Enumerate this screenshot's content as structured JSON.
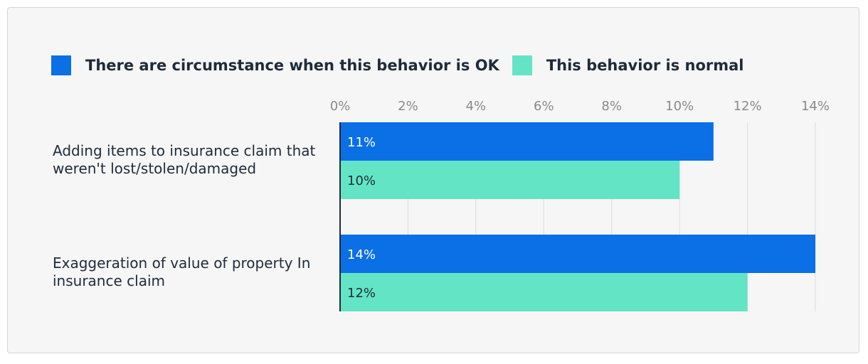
{
  "chart_data": {
    "type": "bar",
    "orientation": "horizontal",
    "categories": [
      "Adding items to insurance claim that weren't lost/stolen/damaged",
      "Exaggeration of value of property In insurance claim"
    ],
    "series": [
      {
        "name": "There are circumstance when this behavior is OK",
        "values": [
          11,
          14
        ],
        "color": "#0b6fe6",
        "label_color": "#ffffff"
      },
      {
        "name": "This behavior is normal",
        "values": [
          10,
          12
        ],
        "color": "#63e5c5",
        "label_color": "#1f2b3a"
      }
    ],
    "value_labels": [
      [
        "11%",
        "14%"
      ],
      [
        "10%",
        "12%"
      ]
    ],
    "x_ticks": [
      0,
      2,
      4,
      6,
      8,
      10,
      12,
      14
    ],
    "x_tick_labels": [
      "0%",
      "2%",
      "4%",
      "6%",
      "8%",
      "10%",
      "12%",
      "14%"
    ],
    "xlim": [
      0,
      14
    ],
    "axis_position": "top",
    "grid": true,
    "legend_position": "top-left",
    "title": "",
    "xlabel": "",
    "ylabel": ""
  }
}
